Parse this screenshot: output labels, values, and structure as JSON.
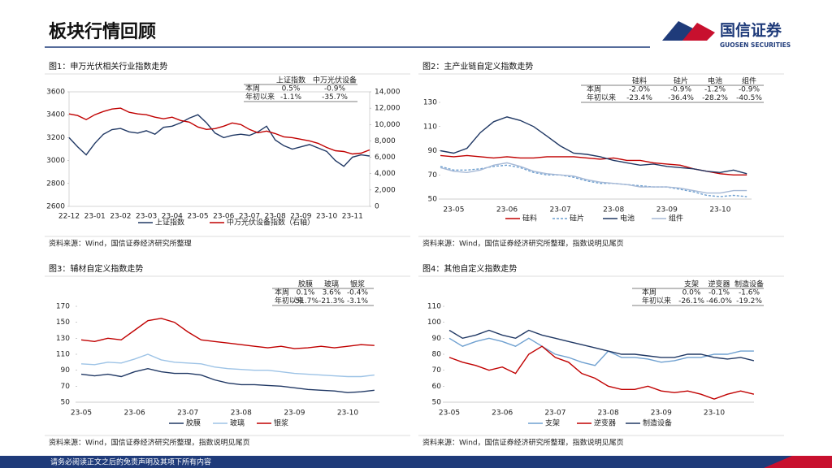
{
  "header": {
    "title": "板块行情回顾",
    "brand": "国信证券",
    "brand_en": "GUOSEN SECURITIES"
  },
  "footer": {
    "text": "请务必阅读正文之后的免责声明及其项下所有内容"
  },
  "chart_data": [
    {
      "type": "line",
      "title": "图1：申万光伏相关行业指数走势",
      "source": "资料来源：Wind，国信证券经济研究所整理",
      "frame": true,
      "table": {
        "columns": [
          "上证指数",
          "中万光伏设备"
        ],
        "rows": [
          [
            "本周",
            "0.5%",
            "-0.9%"
          ],
          [
            "年初以来",
            "-1.1%",
            "-35.7%"
          ]
        ]
      },
      "categories": [
        "22-12",
        null,
        null,
        "23-01",
        null,
        null,
        "23-02",
        null,
        null,
        "23-03",
        null,
        null,
        "23-04",
        null,
        null,
        "23-05",
        null,
        null,
        "23-06",
        null,
        null,
        "23-07",
        null,
        null,
        "23-08",
        null,
        null,
        "23-09",
        null,
        null,
        "23-10",
        null,
        null,
        "23-11",
        null,
        null
      ],
      "series": [
        {
          "name": "上证指数",
          "color": "#203864",
          "values": [
            3200,
            3120,
            3050,
            3150,
            3230,
            3270,
            3280,
            3250,
            3240,
            3260,
            3230,
            3290,
            3300,
            3330,
            3370,
            3400,
            3330,
            3240,
            3200,
            3220,
            3230,
            3220,
            3250,
            3300,
            3180,
            3130,
            3100,
            3120,
            3140,
            3110,
            3080,
            3000,
            2950,
            3030,
            3050,
            3040
          ]
        },
        {
          "name": "中万光伏设备指数（右轴）",
          "color": "#c00000",
          "axis": "y2",
          "values": [
            11300,
            11100,
            10600,
            11200,
            11600,
            11900,
            12000,
            11500,
            11300,
            11200,
            10900,
            10700,
            10900,
            10500,
            10300,
            9700,
            9400,
            9500,
            9800,
            10200,
            10000,
            9400,
            9000,
            9200,
            8900,
            8500,
            8400,
            8200,
            8000,
            7700,
            7200,
            6800,
            6700,
            6400,
            6500,
            6900
          ]
        }
      ],
      "ylim": [
        2600,
        3600
      ],
      "yticks": [
        2600,
        2800,
        3000,
        3200,
        3400,
        3600
      ],
      "y2lim": [
        0,
        14000
      ],
      "y2ticks": [
        0,
        {
          "value": 2000,
          "label": "2,000"
        },
        {
          "value": 4000,
          "label": "4,000"
        },
        {
          "value": 6000,
          "label": "6,000"
        },
        {
          "value": 8000,
          "label": "8,000"
        },
        {
          "value": 10000,
          "label": "10,000"
        },
        {
          "value": 12000,
          "label": "12,000"
        },
        {
          "value": 14000,
          "label": "14,000"
        }
      ]
    },
    {
      "type": "line",
      "title": "图2：主产业链自定义指数走势",
      "source": "资料来源：Wind，国信证券经济研究所整理，指数说明见尾页",
      "table": {
        "columns": [
          "硅料",
          "硅片",
          "电池",
          "组件"
        ],
        "rows": [
          [
            "本周",
            "-2.0%",
            "-0.9%",
            "-1.2%",
            "-0.9%"
          ],
          [
            "年初以来",
            "-23.4%",
            "-36.4%",
            "-28.2%",
            "-40.5%"
          ]
        ]
      },
      "categories": [
        null,
        "23-05",
        null,
        null,
        null,
        "23-06",
        null,
        null,
        null,
        "23-07",
        null,
        null,
        null,
        "23-08",
        null,
        null,
        null,
        "23-09",
        null,
        null,
        null,
        "23-10",
        null,
        null
      ],
      "series": [
        {
          "name": "硅料",
          "color": "#c00000",
          "values": [
            86,
            85,
            86,
            85,
            84,
            85,
            84,
            84,
            85,
            85,
            85,
            84,
            83,
            84,
            82,
            82,
            80,
            79,
            78,
            75,
            73,
            71,
            70,
            70
          ]
        },
        {
          "name": "硅片",
          "color": "#6fa0d0",
          "style": "dashed",
          "values": [
            77,
            74,
            74,
            75,
            77,
            78,
            76,
            72,
            70,
            70,
            68,
            65,
            63,
            63,
            62,
            61,
            60,
            60,
            58,
            56,
            53,
            52,
            53,
            52
          ]
        },
        {
          "name": "电池",
          "color": "#203864",
          "values": [
            90,
            88,
            92,
            105,
            114,
            118,
            115,
            110,
            102,
            94,
            88,
            87,
            85,
            82,
            80,
            78,
            79,
            77,
            76,
            75,
            73,
            72,
            74,
            71
          ]
        },
        {
          "name": "组件",
          "color": "#a6b9d6",
          "values": [
            76,
            73,
            72,
            74,
            78,
            80,
            77,
            73,
            71,
            70,
            69,
            66,
            64,
            63,
            62,
            60,
            60,
            60,
            59,
            57,
            55,
            55,
            57,
            57
          ]
        }
      ],
      "ylim": [
        50,
        130
      ],
      "yticks": [
        50,
        70,
        90,
        110,
        130
      ]
    },
    {
      "type": "line",
      "title": "图3：辅材自定义指数走势",
      "source": "资料来源：Wind，国信证券经济研究所整理，指数说明见尾页",
      "table": {
        "columns": [
          "胶膜",
          "玻璃",
          "银浆"
        ],
        "rows": [
          [
            "本周",
            "0.1%",
            "3.6%",
            "-0.4%"
          ],
          [
            "年初以来",
            "-51.7%",
            "-21.3%",
            "-3.1%"
          ]
        ]
      },
      "categories": [
        "23-05",
        null,
        null,
        null,
        "23-06",
        null,
        null,
        null,
        "23-07",
        null,
        null,
        null,
        "23-08",
        null,
        null,
        null,
        "23-09",
        null,
        null,
        null,
        "23-10",
        null,
        null
      ],
      "series": [
        {
          "name": "胶膜",
          "color": "#203864",
          "values": [
            85,
            83,
            85,
            82,
            88,
            92,
            88,
            86,
            86,
            84,
            78,
            74,
            72,
            72,
            71,
            70,
            68,
            66,
            65,
            64,
            62,
            63,
            65
          ]
        },
        {
          "name": "玻璃",
          "color": "#9dc3e6",
          "values": [
            98,
            97,
            100,
            99,
            104,
            110,
            103,
            100,
            99,
            98,
            94,
            92,
            91,
            90,
            90,
            88,
            86,
            85,
            84,
            83,
            82,
            82,
            84
          ]
        },
        {
          "name": "银浆",
          "color": "#c00000",
          "values": [
            128,
            126,
            130,
            128,
            140,
            152,
            155,
            150,
            138,
            128,
            126,
            124,
            122,
            120,
            118,
            120,
            117,
            118,
            120,
            118,
            120,
            122,
            121
          ]
        }
      ],
      "ylim": [
        50,
        170
      ],
      "yticks": [
        50,
        70,
        90,
        110,
        130,
        150,
        170
      ]
    },
    {
      "type": "line",
      "title": "图4：其他自定义指数走势",
      "source": "资料来源：Wind，国信证券经济研究所整理，指数说明见尾页",
      "table": {
        "columns": [
          "支架",
          "逆变器",
          "制造设备"
        ],
        "rows": [
          [
            "本周",
            "0.0%",
            "-0.1%",
            "-1.6%"
          ],
          [
            "年初以来",
            "-26.1%",
            "-46.0%",
            "-19.2%"
          ]
        ]
      },
      "categories": [
        "23-05",
        null,
        null,
        null,
        "23-06",
        null,
        null,
        null,
        "23-07",
        null,
        null,
        null,
        "23-08",
        null,
        null,
        null,
        "23-09",
        null,
        null,
        null,
        "23-10",
        null,
        null,
        null
      ],
      "series": [
        {
          "name": "支架",
          "color": "#6fa0d0",
          "values": [
            90,
            85,
            88,
            90,
            88,
            85,
            90,
            85,
            80,
            78,
            75,
            73,
            82,
            78,
            78,
            77,
            75,
            76,
            78,
            78,
            80,
            80,
            82,
            82
          ]
        },
        {
          "name": "逆变器",
          "color": "#c00000",
          "values": [
            78,
            75,
            73,
            70,
            72,
            68,
            80,
            85,
            78,
            75,
            68,
            65,
            60,
            58,
            58,
            60,
            57,
            56,
            57,
            55,
            52,
            55,
            57,
            55
          ]
        },
        {
          "name": "制造设备",
          "color": "#203864",
          "values": [
            95,
            90,
            92,
            95,
            92,
            90,
            95,
            92,
            90,
            88,
            86,
            84,
            82,
            80,
            80,
            79,
            78,
            78,
            80,
            80,
            78,
            77,
            78,
            76
          ]
        }
      ],
      "ylim": [
        50,
        110
      ],
      "yticks": [
        50,
        60,
        70,
        80,
        90,
        100,
        110
      ]
    }
  ]
}
